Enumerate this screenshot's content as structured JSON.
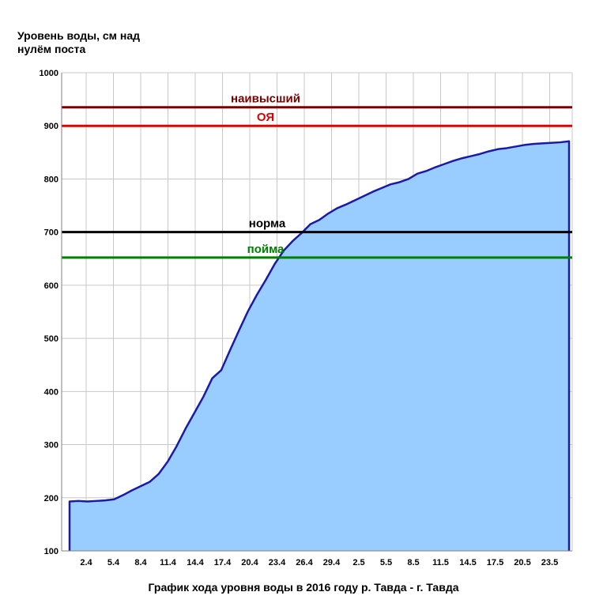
{
  "chart_data": {
    "type": "area",
    "title": "График хода уровня воды в 2016 году р. Тавда - г. Тавда",
    "ylabel_lines": [
      "Уровень воды, см над",
      "нулём поста"
    ],
    "xlabel": "",
    "ylim": [
      100,
      1000
    ],
    "yticks": [
      100,
      200,
      300,
      400,
      500,
      600,
      700,
      800,
      900,
      1000
    ],
    "xticks": [
      "2.4",
      "5.4",
      "8.4",
      "11.4",
      "14.4",
      "17.4",
      "20.4",
      "23.4",
      "26.4",
      "29.4",
      "2.5",
      "5.5",
      "8.5",
      "11.5",
      "14.5",
      "17.5",
      "20.5",
      "23.5"
    ],
    "grid": true,
    "fill_color": "#99ccff",
    "line_color": "#1a1aa8",
    "series": [
      {
        "x": [
          0,
          1,
          2,
          3,
          4,
          5,
          6,
          7,
          8,
          9,
          10,
          11,
          12,
          13,
          14,
          15,
          16,
          17,
          18,
          19,
          20,
          21,
          22,
          23,
          24,
          25,
          26,
          27,
          28,
          29,
          30,
          31,
          32,
          33,
          34,
          35,
          36,
          37,
          38,
          39,
          40,
          41,
          42,
          43,
          44,
          45,
          46,
          47,
          48,
          49,
          50,
          51,
          52,
          53,
          54,
          55,
          56
        ],
        "values": [
          193,
          194,
          193,
          194,
          195,
          197,
          205,
          214,
          222,
          230,
          245,
          268,
          297,
          330,
          360,
          390,
          425,
          440,
          478,
          515,
          551,
          582,
          610,
          640,
          665,
          683,
          698,
          715,
          723,
          735,
          745,
          752,
          760,
          768,
          776,
          783,
          790,
          794,
          800,
          810,
          815,
          822,
          828,
          834,
          839,
          843,
          847,
          852,
          856,
          858,
          861,
          864,
          866,
          867,
          868,
          869,
          871
        ]
      }
    ],
    "reference_lines": [
      {
        "label": "наивысший",
        "value": 935,
        "color": "#7a0000"
      },
      {
        "label": "ОЯ",
        "value": 900,
        "color": "#e00000"
      },
      {
        "label": "норма",
        "value": 700,
        "color": "#000000"
      },
      {
        "label": "пойма",
        "value": 652,
        "color": "#008000"
      }
    ]
  }
}
